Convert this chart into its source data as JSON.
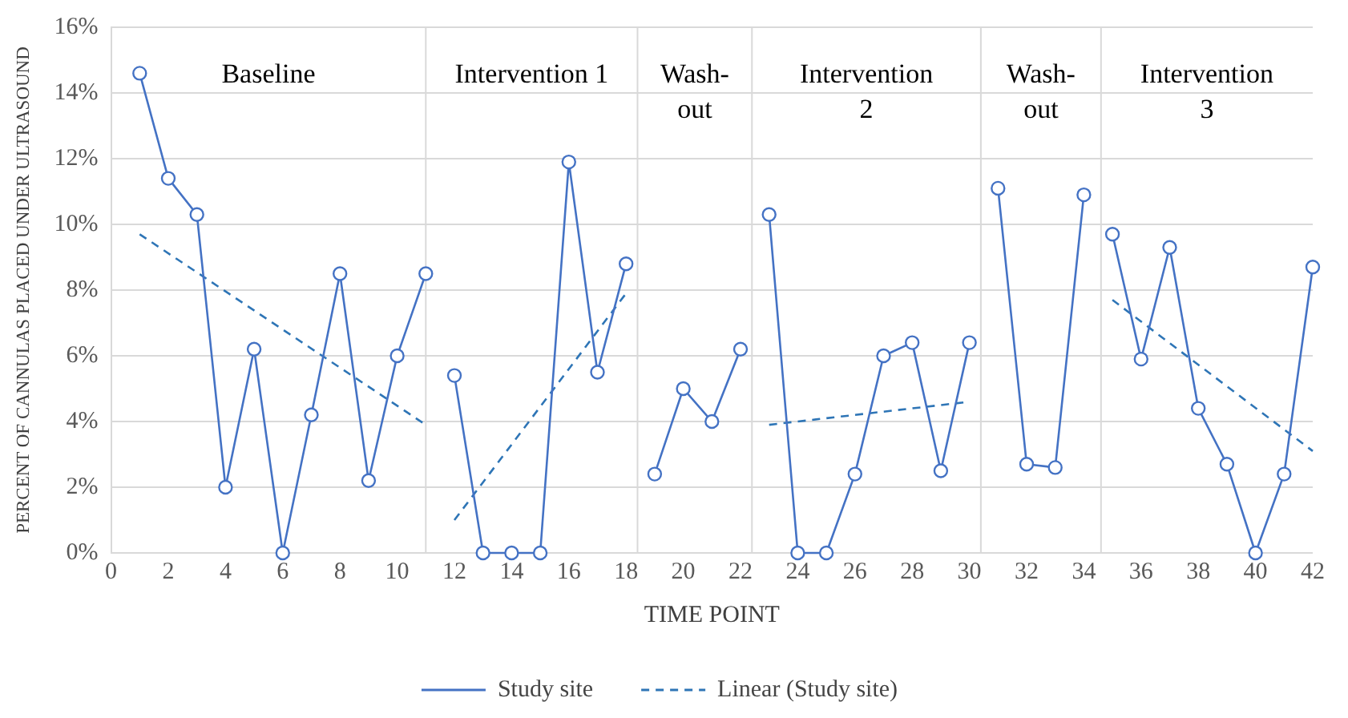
{
  "chart_data": {
    "type": "line",
    "xlabel": "TIME POINT",
    "ylabel": "PERCENT OF CANNULAS PLACED UNDER ULTRASOUND",
    "xlim": [
      0,
      42
    ],
    "xticks": [
      0,
      2,
      4,
      6,
      8,
      10,
      12,
      14,
      16,
      18,
      20,
      22,
      24,
      26,
      28,
      30,
      32,
      34,
      36,
      38,
      40,
      42
    ],
    "ylim": [
      0,
      16
    ],
    "yticks": [
      {
        "value": 0,
        "label": "0%"
      },
      {
        "value": 2,
        "label": "2%"
      },
      {
        "value": 4,
        "label": "4%"
      },
      {
        "value": 6,
        "label": "6%"
      },
      {
        "value": 8,
        "label": "8%"
      },
      {
        "value": 10,
        "label": "10%"
      },
      {
        "value": 12,
        "label": "12%"
      },
      {
        "value": 14,
        "label": "14%"
      },
      {
        "value": 16,
        "label": "16%"
      }
    ],
    "grid": "y",
    "legend": "bottom",
    "series": [
      {
        "name": "Study site",
        "color": "#4472c4",
        "marker": "circle",
        "line_style": "solid",
        "x": [
          1,
          2,
          3,
          4,
          5,
          6,
          7,
          8,
          9,
          10,
          11,
          11.5,
          12,
          13,
          14,
          15,
          16,
          17,
          18,
          18.5,
          19,
          20,
          21,
          22,
          22.5,
          23,
          24,
          25,
          26,
          27,
          28,
          29,
          30,
          30.5,
          31,
          32,
          33,
          34,
          34.5,
          35,
          36,
          37,
          38,
          39,
          40,
          41,
          42
        ],
        "values": [
          14.6,
          11.4,
          10.3,
          2.0,
          6.2,
          0,
          4.2,
          8.5,
          2.2,
          6.0,
          8.5,
          null,
          5.4,
          0,
          0,
          0,
          11.9,
          5.5,
          8.8,
          null,
          2.4,
          5.0,
          4.0,
          6.2,
          null,
          10.3,
          0,
          0,
          2.4,
          6.0,
          6.4,
          2.5,
          6.4,
          null,
          11.1,
          2.7,
          2.6,
          10.9,
          null,
          9.7,
          5.9,
          9.3,
          4.4,
          2.7,
          0,
          2.4,
          8.7
        ]
      },
      {
        "name": "Linear (Study site)",
        "type": "line",
        "color": "#2e75b6",
        "marker": "none",
        "line_style": "dashed",
        "x": [
          1,
          11,
          11.5,
          12,
          18,
          18.5,
          23,
          30,
          30.5,
          35,
          42
        ],
        "values": [
          9.7,
          3.9,
          null,
          1.0,
          7.9,
          null,
          3.9,
          4.6,
          null,
          7.7,
          3.1
        ]
      }
    ],
    "ref_lines": [
      {
        "axis": "x",
        "value": 11,
        "color": "#d9d9d9"
      },
      {
        "axis": "x",
        "value": 18.4,
        "color": "#d9d9d9"
      },
      {
        "axis": "x",
        "value": 22.4,
        "color": "#d9d9d9"
      },
      {
        "axis": "x",
        "value": 30.4,
        "color": "#d9d9d9"
      },
      {
        "axis": "x",
        "value": 34.6,
        "color": "#d9d9d9"
      }
    ],
    "annotations": [
      "Baseline",
      "Intervention 1",
      "Wash-\nout",
      "Intervention\n2",
      "Wash-\nout",
      "Intervention\n3"
    ]
  }
}
